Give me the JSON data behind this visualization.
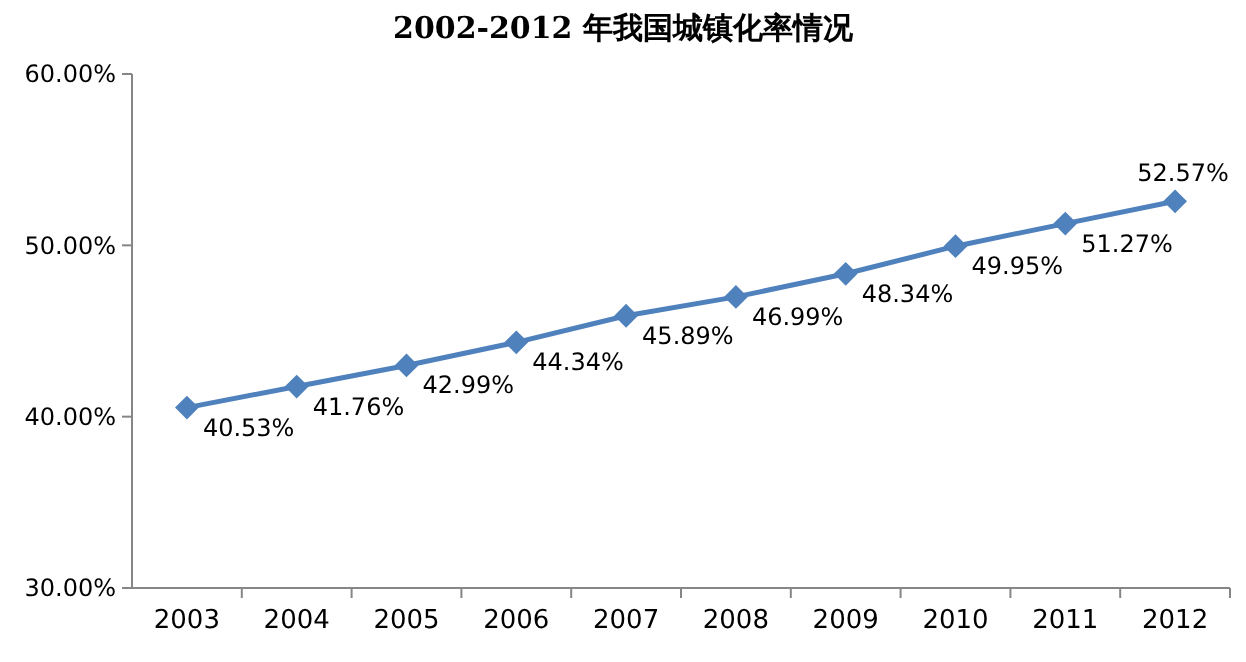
{
  "chart_data": {
    "type": "line",
    "title": "2002-2012 年我国城镇化率情况",
    "categories": [
      "2003",
      "2004",
      "2005",
      "2006",
      "2007",
      "2008",
      "2009",
      "2010",
      "2011",
      "2012"
    ],
    "series": [
      {
        "color": "#4f81bd",
        "values": [
          40.53,
          41.76,
          42.99,
          44.34,
          45.89,
          46.99,
          48.34,
          49.95,
          51.27,
          52.57
        ],
        "value_labels": [
          "40.53%",
          "41.76%",
          "42.99%",
          "44.34%",
          "45.89%",
          "46.99%",
          "48.34%",
          "49.95%",
          "51.27%",
          "52.57%"
        ]
      }
    ],
    "ylim": [
      30,
      60
    ],
    "yticks": [
      {
        "value": 30,
        "label": "30.00%"
      },
      {
        "value": 40,
        "label": "40.00%"
      },
      {
        "value": 50,
        "label": "50.00%"
      },
      {
        "value": 60,
        "label": "60.00%"
      }
    ],
    "grid": false,
    "marker": "diamond",
    "line_style": "solid"
  }
}
